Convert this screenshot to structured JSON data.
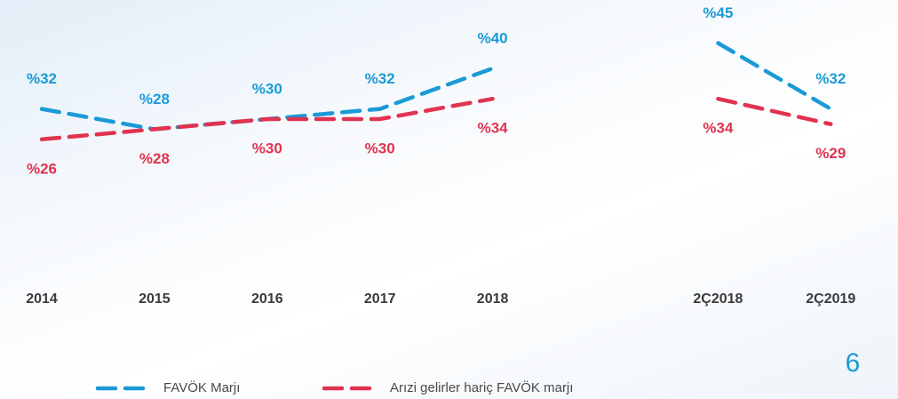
{
  "chart_data": {
    "type": "line",
    "categories": [
      "2014",
      "2015",
      "2016",
      "2017",
      "2018",
      null,
      "2Ç2018",
      "2Ç2019"
    ],
    "series": [
      {
        "name": "FAVÖK Marjı",
        "color": "#1a9ad6",
        "values": [
          32,
          28,
          30,
          32,
          40,
          null,
          45,
          32
        ],
        "value_labels": [
          "%32",
          "%28",
          "%30",
          "%32",
          "%40",
          null,
          "%45",
          "%32"
        ]
      },
      {
        "name": "Arızi gelirler hariç FAVÖK marjı",
        "color": "#e0334f",
        "values": [
          26,
          28,
          30,
          30,
          34,
          null,
          34,
          29
        ],
        "value_labels": [
          "%26",
          "%28",
          "%30",
          "%30",
          "%34",
          null,
          "%34",
          "%29"
        ]
      }
    ],
    "legend": "bottom",
    "page_number": "6"
  }
}
